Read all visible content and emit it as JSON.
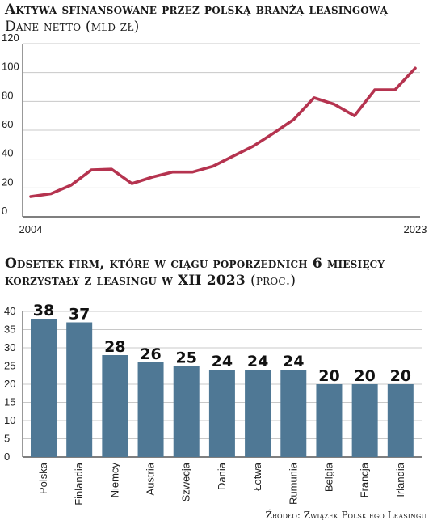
{
  "chart_data": [
    {
      "type": "line",
      "title": "Aktywa sfinansowane przez polską branżą leasingową",
      "subtitle": "Dane netto (mld zł)",
      "x": [
        2004,
        2005,
        2006,
        2007,
        2008,
        2009,
        2010,
        2011,
        2012,
        2013,
        2014,
        2015,
        2016,
        2017,
        2018,
        2019,
        2020,
        2021,
        2022,
        2023
      ],
      "x_tick_labels": [
        "2004",
        "2023"
      ],
      "series": [
        {
          "values": [
            14,
            16,
            22,
            32.5,
            33,
            23,
            27.5,
            31,
            31,
            35,
            42,
            49,
            58,
            67.5,
            82.5,
            78,
            70,
            88,
            88,
            103
          ]
        }
      ],
      "yticks": [
        0,
        20,
        40,
        60,
        80,
        100,
        120
      ],
      "ylim": [
        0,
        120
      ],
      "xlabel": "",
      "ylabel": "",
      "grid": true,
      "line_color": "#b5334f"
    },
    {
      "type": "bar",
      "title": "Odsetek firm, które w ciągu poporzednich 6 miesięcy korzystały z leasingu w XII 2023",
      "subtitle": "(proc.)",
      "categories": [
        "Polska",
        "Finlandia",
        "Niemcy",
        "Austria",
        "Szwecja",
        "Dania",
        "Łotwa",
        "Rumunia",
        "Belgia",
        "Francja",
        "Irlandia"
      ],
      "values": [
        38,
        37,
        28,
        26,
        25,
        24,
        24,
        24,
        20,
        20,
        20
      ],
      "value_labels": [
        "38",
        "37",
        "28",
        "26",
        "25",
        "24",
        "24",
        "24",
        "20",
        "20",
        "20"
      ],
      "yticks": [
        0,
        5,
        10,
        15,
        20,
        25,
        30,
        35,
        40
      ],
      "ylim": [
        0,
        40
      ],
      "xlabel": "",
      "ylabel": "",
      "grid": true,
      "bar_color": "#4f7895"
    }
  ],
  "source": "Źródło: Związek Polskiego Leasingu"
}
